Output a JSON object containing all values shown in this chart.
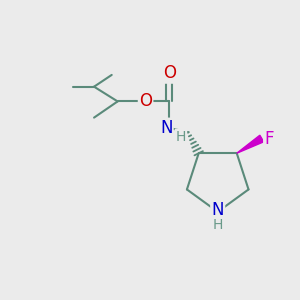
{
  "background_color": "#ebebeb",
  "bond_color": "#5a8a7a",
  "bond_width": 1.5,
  "atom_colors": {
    "O": "#cc0000",
    "N": "#0000cc",
    "F": "#cc00cc",
    "C": "#5a8a7a",
    "H": "#6a9a8a"
  },
  "figsize": [
    3.0,
    3.0
  ],
  "dpi": 100
}
